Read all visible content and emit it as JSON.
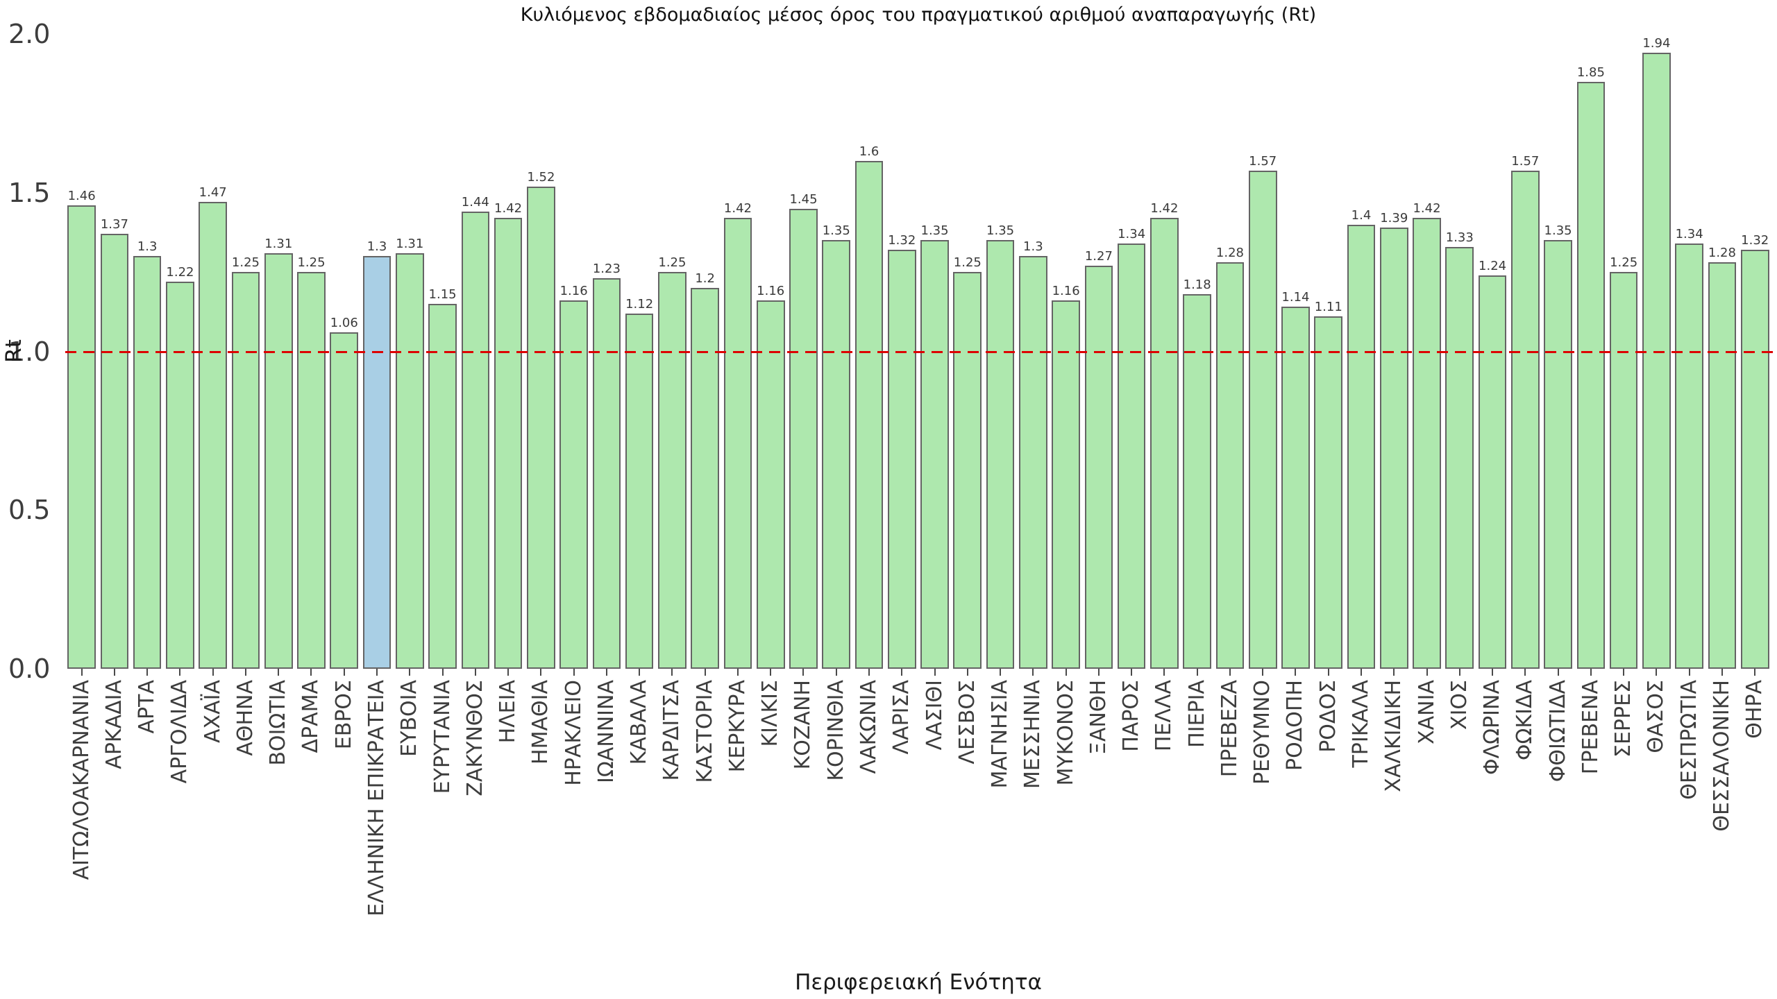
{
  "chart_data": {
    "type": "bar",
    "title": "Κυλιόμενος εβδομαδιαίος μέσος όρος του πραγματικού αριθμού αναπαραγωγής (Rt)",
    "xlabel": "Περιφερειακή Ενότητα",
    "ylabel": "Rt",
    "ylim": [
      0,
      2
    ],
    "yticks": [
      "0.0",
      "0.5",
      "1.0",
      "1.5",
      "2.0"
    ],
    "grid": false,
    "legend": "none",
    "value_labels": true,
    "reference_line": {
      "value": 1.0,
      "style": "dashed",
      "color": "#dd0000"
    },
    "bar_fill": "#aee8ae",
    "bar_highlight_fill": "#a9cfe5",
    "bar_edge": "#646464",
    "highlight_category": "ΕΛΛΗΝΙΚΗ ΕΠΙΚΡΑΤΕΙΑ",
    "categories": [
      "ΑΙΤΩΛΟΑΚΑΡΝΑΝΙΑ",
      "ΑΡΚΑΔΙΑ",
      "ΑΡΤΑ",
      "ΑΡΓΟΛΙΔΑ",
      "ΑΧΑΪΑ",
      "ΑΘΗΝΑ",
      "ΒΟΙΩΤΙΑ",
      "ΔΡΑΜΑ",
      "ΕΒΡΟΣ",
      "ΕΛΛΗΝΙΚΗ ΕΠΙΚΡΑΤΕΙΑ",
      "ΕΥΒΟΙΑ",
      "ΕΥΡΥΤΑΝΙΑ",
      "ΖΑΚΥΝΘΟΣ",
      "ΗΛΕΙΑ",
      "ΗΜΑΘΙΑ",
      "ΗΡΑΚΛΕΙΟ",
      "ΙΩΑΝΝΙΝΑ",
      "ΚΑΒΑΛΑ",
      "ΚΑΡΔΙΤΣΑ",
      "ΚΑΣΤΟΡΙΑ",
      "ΚΕΡΚΥΡΑ",
      "ΚΙΛΚΙΣ",
      "ΚΟΖΑΝΗ",
      "ΚΟΡΙΝΘΙΑ",
      "ΛΑΚΩΝΙΑ",
      "ΛΑΡΙΣΑ",
      "ΛΑΣΙΘΙ",
      "ΛΕΣΒΟΣ",
      "ΜΑΓΝΗΣΙΑ",
      "ΜΕΣΣΗΝΙΑ",
      "ΜΥΚΟΝΟΣ",
      "ΞΑΝΘΗ",
      "ΠΑΡΟΣ",
      "ΠΕΛΛΑ",
      "ΠΙΕΡΙΑ",
      "ΠΡΕΒΕΖΑ",
      "ΡΕΘΥΜΝΟ",
      "ΡΟΔΟΠΗ",
      "ΡΟΔΟΣ",
      "ΤΡΙΚΑΛΑ",
      "ΧΑΛΚΙΔΙΚΗ",
      "ΧΑΝΙΑ",
      "ΧΙΟΣ",
      "ΦΛΩΡΙΝΑ",
      "ΦΩΚΙΔΑ",
      "ΦΘΙΩΤΙΔΑ",
      "ΓΡΕΒΕΝΑ",
      "ΣΕΡΡΕΣ",
      "ΘΑΣΟΣ",
      "ΘΕΣΠΡΩΤΙΑ",
      "ΘΕΣΣΑΛΟΝΙΚΗ",
      "ΘΗΡΑ"
    ],
    "values": [
      1.46,
      1.37,
      1.3,
      1.22,
      1.47,
      1.25,
      1.31,
      1.25,
      1.06,
      1.3,
      1.31,
      1.15,
      1.44,
      1.42,
      1.52,
      1.16,
      1.23,
      1.12,
      1.25,
      1.2,
      1.42,
      1.16,
      1.45,
      1.35,
      1.6,
      1.32,
      1.35,
      1.25,
      1.35,
      1.3,
      1.16,
      1.27,
      1.34,
      1.42,
      1.18,
      1.28,
      1.57,
      1.14,
      1.11,
      1.4,
      1.39,
      1.42,
      1.33,
      1.24,
      1.57,
      1.35,
      1.85,
      1.25,
      1.94,
      1.34,
      1.28,
      1.32
    ]
  }
}
